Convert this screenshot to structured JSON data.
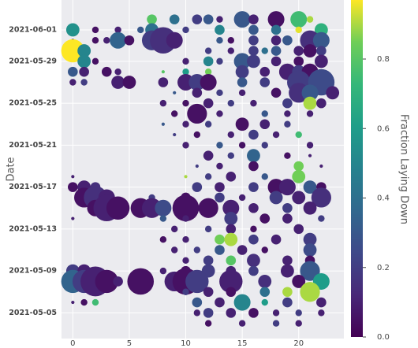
{
  "chart_data": {
    "type": "bubble",
    "y_label": "Date",
    "colorbar_label": "Fraction Laying Down",
    "xlim": [
      -1,
      24
    ],
    "xticks": [
      0,
      5,
      10,
      15,
      20
    ],
    "ylim": [
      "2021-05-03",
      "2021-06-04"
    ],
    "yticks": [
      "2021-06-01",
      "2021-05-29",
      "2021-05-25",
      "2021-05-21",
      "2021-05-17",
      "2021-05-13",
      "2021-05-09",
      "2021-05-05"
    ],
    "clim": [
      0,
      0.97
    ],
    "cticks": [
      {
        "value": 0,
        "label": "0.0"
      },
      0.2,
      0.4,
      0.6,
      0.8
    ],
    "colormap": "viridis",
    "points": [
      [
        7,
        "2021-06-02",
        3,
        0.8
      ],
      [
        9,
        "2021-06-02",
        3,
        0.4
      ],
      [
        11,
        "2021-06-02",
        3,
        0.2
      ],
      [
        12,
        "2021-06-02",
        3,
        0.3
      ],
      [
        13,
        "2021-06-02",
        2,
        0.1
      ],
      [
        15,
        "2021-06-02",
        5,
        0.3
      ],
      [
        16,
        "2021-06-02",
        3,
        0.1
      ],
      [
        18,
        "2021-06-02",
        5,
        0.05
      ],
      [
        20,
        "2021-06-02",
        5,
        0.75
      ],
      [
        21,
        "2021-06-02",
        2,
        0.9
      ],
      [
        0,
        "2021-06-01",
        4,
        0.55
      ],
      [
        2,
        "2021-06-01",
        2,
        0.05
      ],
      [
        4,
        "2021-06-01",
        2,
        0.1
      ],
      [
        6,
        "2021-06-01",
        2,
        0.3
      ],
      [
        7,
        "2021-06-01",
        4,
        0.4
      ],
      [
        10,
        "2021-06-01",
        2,
        0.2
      ],
      [
        13,
        "2021-06-01",
        3,
        0.5
      ],
      [
        16,
        "2021-06-01",
        3,
        0.3
      ],
      [
        18,
        "2021-06-01",
        3,
        0.4
      ],
      [
        20,
        "2021-06-01",
        2,
        0.95
      ],
      [
        22,
        "2021-06-01",
        4,
        0.7
      ],
      [
        0,
        "2021-05-31",
        1,
        0.2
      ],
      [
        2,
        "2021-05-31",
        2,
        0.05
      ],
      [
        3,
        "2021-05-31",
        2,
        0.1
      ],
      [
        4,
        "2021-05-31",
        5,
        0.35
      ],
      [
        5,
        "2021-05-31",
        3,
        0.05
      ],
      [
        7,
        "2021-05-31",
        6,
        0.2
      ],
      [
        8,
        "2021-05-31",
        8,
        0.15
      ],
      [
        9,
        "2021-05-31",
        5,
        0.1
      ],
      [
        13,
        "2021-05-31",
        2,
        0.3
      ],
      [
        14,
        "2021-05-31",
        2,
        0.05
      ],
      [
        16,
        "2021-05-31",
        3,
        0.2
      ],
      [
        18,
        "2021-05-31",
        3,
        0.1
      ],
      [
        19,
        "2021-05-31",
        3,
        0.3
      ],
      [
        21,
        "2021-05-31",
        6,
        0.15
      ],
      [
        22,
        "2021-05-31",
        5,
        0.3
      ],
      [
        0,
        "2021-05-30",
        7,
        0.97
      ],
      [
        1,
        "2021-05-30",
        4,
        0.5
      ],
      [
        12,
        "2021-05-30",
        2,
        0.2
      ],
      [
        14,
        "2021-05-30",
        2,
        0.1
      ],
      [
        16,
        "2021-05-30",
        3,
        0.2
      ],
      [
        17,
        "2021-05-30",
        2,
        0.4
      ],
      [
        18,
        "2021-05-30",
        3,
        0.3
      ],
      [
        20,
        "2021-05-30",
        3,
        0.1
      ],
      [
        21,
        "2021-05-30",
        4,
        0.05
      ],
      [
        22,
        "2021-05-30",
        3,
        0.2
      ],
      [
        1,
        "2021-05-29",
        4,
        0.5
      ],
      [
        2,
        "2021-05-29",
        2,
        0.05
      ],
      [
        10,
        "2021-05-29",
        2,
        0.1
      ],
      [
        12,
        "2021-05-29",
        3,
        0.5
      ],
      [
        13,
        "2021-05-29",
        2,
        0.2
      ],
      [
        15,
        "2021-05-29",
        5,
        0.3
      ],
      [
        16,
        "2021-05-29",
        4,
        0.2
      ],
      [
        18,
        "2021-05-29",
        3,
        0.1
      ],
      [
        20,
        "2021-05-29",
        3,
        0.05
      ],
      [
        22,
        "2021-05-29",
        4,
        0.1
      ],
      [
        0,
        "2021-05-28",
        3,
        0.3
      ],
      [
        1,
        "2021-05-28",
        3,
        0.1
      ],
      [
        3,
        "2021-05-28",
        3,
        0.05
      ],
      [
        4,
        "2021-05-28",
        2,
        0.1
      ],
      [
        8,
        "2021-05-28",
        1,
        0.8
      ],
      [
        10,
        "2021-05-28",
        2,
        0.6
      ],
      [
        12,
        "2021-05-28",
        2,
        0.85
      ],
      [
        15,
        "2021-05-28",
        4,
        0.2
      ],
      [
        17,
        "2021-05-28",
        3,
        0.1
      ],
      [
        19,
        "2021-05-28",
        5,
        0.1
      ],
      [
        20,
        "2021-05-28",
        4,
        0.2
      ],
      [
        21,
        "2021-05-28",
        5,
        0.05
      ],
      [
        0,
        "2021-05-27",
        2,
        0.1
      ],
      [
        1,
        "2021-05-27",
        2,
        0.2
      ],
      [
        4,
        "2021-05-27",
        4,
        0.1
      ],
      [
        5,
        "2021-05-27",
        4,
        0.05
      ],
      [
        8,
        "2021-05-27",
        3,
        0.1
      ],
      [
        10,
        "2021-05-27",
        5,
        0.1
      ],
      [
        11,
        "2021-05-27",
        5,
        0.2
      ],
      [
        12,
        "2021-05-27",
        5,
        0.05
      ],
      [
        15,
        "2021-05-27",
        3,
        0.3
      ],
      [
        17,
        "2021-05-27",
        3,
        0.2
      ],
      [
        20,
        "2021-05-27",
        7,
        0.2
      ],
      [
        22,
        "2021-05-27",
        8,
        0.25
      ],
      [
        9,
        "2021-05-26",
        1,
        0.3
      ],
      [
        11,
        "2021-05-26",
        3,
        0.1
      ],
      [
        13,
        "2021-05-26",
        2,
        0.2
      ],
      [
        15,
        "2021-05-26",
        2,
        0.1
      ],
      [
        18,
        "2021-05-26",
        3,
        0.05
      ],
      [
        20,
        "2021-05-26",
        6,
        0.15
      ],
      [
        21,
        "2021-05-26",
        5,
        0.3
      ],
      [
        23,
        "2021-05-26",
        4,
        0.1
      ],
      [
        8,
        "2021-05-25",
        2,
        0.1
      ],
      [
        10,
        "2021-05-25",
        2,
        0.05
      ],
      [
        12,
        "2021-05-25",
        3,
        0.1
      ],
      [
        14,
        "2021-05-25",
        2,
        0.2
      ],
      [
        16,
        "2021-05-25",
        2,
        0.1
      ],
      [
        19,
        "2021-05-25",
        3,
        0.2
      ],
      [
        21,
        "2021-05-25",
        4,
        0.9
      ],
      [
        22,
        "2021-05-25",
        3,
        0.1
      ],
      [
        9,
        "2021-05-24",
        2,
        0.05
      ],
      [
        11,
        "2021-05-24",
        6,
        0.05
      ],
      [
        13,
        "2021-05-24",
        2,
        0.1
      ],
      [
        17,
        "2021-05-24",
        2,
        0.3
      ],
      [
        19,
        "2021-05-24",
        2,
        0.1
      ],
      [
        21,
        "2021-05-24",
        2,
        0.1
      ],
      [
        8,
        "2021-05-23",
        1,
        0.3
      ],
      [
        10,
        "2021-05-23",
        2,
        0.1
      ],
      [
        12,
        "2021-05-23",
        2,
        0.2
      ],
      [
        15,
        "2021-05-23",
        4,
        0.05
      ],
      [
        17,
        "2021-05-23",
        3,
        0.1
      ],
      [
        19,
        "2021-05-23",
        2,
        0.2
      ],
      [
        9,
        "2021-05-22",
        1,
        0.2
      ],
      [
        11,
        "2021-05-22",
        2,
        0.05
      ],
      [
        14,
        "2021-05-22",
        2,
        0.1
      ],
      [
        16,
        "2021-05-22",
        3,
        0.2
      ],
      [
        18,
        "2021-05-22",
        2,
        0.1
      ],
      [
        20,
        "2021-05-22",
        2,
        0.75
      ],
      [
        10,
        "2021-05-21",
        2,
        0.1
      ],
      [
        13,
        "2021-05-21",
        2,
        0.3
      ],
      [
        15,
        "2021-05-21",
        2,
        0.05
      ],
      [
        17,
        "2021-05-21",
        2,
        0.2
      ],
      [
        21,
        "2021-05-21",
        2,
        0.1
      ],
      [
        12,
        "2021-05-20",
        3,
        0.1
      ],
      [
        14,
        "2021-05-20",
        2,
        0.2
      ],
      [
        16,
        "2021-05-20",
        4,
        0.35
      ],
      [
        19,
        "2021-05-20",
        2,
        0.05
      ],
      [
        21,
        "2021-05-20",
        1,
        0.1
      ],
      [
        11,
        "2021-05-19",
        1,
        0.2
      ],
      [
        13,
        "2021-05-19",
        2,
        0.1
      ],
      [
        16,
        "2021-05-19",
        3,
        0.05
      ],
      [
        20,
        "2021-05-19",
        3,
        0.85
      ],
      [
        22,
        "2021-05-19",
        1,
        0.1
      ],
      [
        0,
        "2021-05-18",
        1,
        0.1
      ],
      [
        10,
        "2021-05-18",
        1,
        0.9
      ],
      [
        12,
        "2021-05-18",
        2,
        0.2
      ],
      [
        14,
        "2021-05-18",
        3,
        0.1
      ],
      [
        17,
        "2021-05-18",
        2,
        0.3
      ],
      [
        20,
        "2021-05-18",
        4,
        0.85
      ],
      [
        0,
        "2021-05-17",
        3,
        0.05
      ],
      [
        1,
        "2021-05-17",
        4,
        0.1
      ],
      [
        2,
        "2021-05-17",
        3,
        0.15
      ],
      [
        11,
        "2021-05-17",
        3,
        0.2
      ],
      [
        13,
        "2021-05-17",
        3,
        0.1
      ],
      [
        16,
        "2021-05-17",
        3,
        0.2
      ],
      [
        18,
        "2021-05-17",
        5,
        0.05
      ],
      [
        19,
        "2021-05-17",
        5,
        0.1
      ],
      [
        21,
        "2021-05-17",
        4,
        0.3
      ],
      [
        22,
        "2021-05-17",
        3,
        0.05
      ],
      [
        1,
        "2021-05-16",
        6,
        0.05
      ],
      [
        2,
        "2021-05-16",
        7,
        0.15
      ],
      [
        3,
        "2021-05-16",
        5,
        0.1
      ],
      [
        7,
        "2021-05-16",
        2,
        0.2
      ],
      [
        10,
        "2021-05-16",
        3,
        0.05
      ],
      [
        13,
        "2021-05-16",
        3,
        0.2
      ],
      [
        15,
        "2021-05-16",
        2,
        0.1
      ],
      [
        18,
        "2021-05-16",
        4,
        0.2
      ],
      [
        20,
        "2021-05-16",
        4,
        0.1
      ],
      [
        22,
        "2021-05-16",
        6,
        0.15
      ],
      [
        2,
        "2021-05-15",
        5,
        0.05
      ],
      [
        3,
        "2021-05-15",
        8,
        0.1
      ],
      [
        4,
        "2021-05-15",
        7,
        0.05
      ],
      [
        6,
        "2021-05-15",
        6,
        0.05
      ],
      [
        7,
        "2021-05-15",
        6,
        0.1
      ],
      [
        8,
        "2021-05-15",
        5,
        0.25
      ],
      [
        10,
        "2021-05-15",
        8,
        0.05
      ],
      [
        12,
        "2021-05-15",
        6,
        0.05
      ],
      [
        14,
        "2021-05-15",
        5,
        0.1
      ],
      [
        16,
        "2021-05-15",
        3,
        0.1
      ],
      [
        19,
        "2021-05-15",
        3,
        0.2
      ],
      [
        21,
        "2021-05-15",
        4,
        0.1
      ],
      [
        0,
        "2021-05-14",
        1,
        0.1
      ],
      [
        8,
        "2021-05-14",
        2,
        0.3
      ],
      [
        10,
        "2021-05-14",
        2,
        0.1
      ],
      [
        14,
        "2021-05-14",
        4,
        0.2
      ],
      [
        17,
        "2021-05-14",
        3,
        0.05
      ],
      [
        19,
        "2021-05-14",
        3,
        0.1
      ],
      [
        22,
        "2021-05-14",
        2,
        0.2
      ],
      [
        9,
        "2021-05-13",
        2,
        0.1
      ],
      [
        12,
        "2021-05-13",
        2,
        0.2
      ],
      [
        14,
        "2021-05-13",
        3,
        0.1
      ],
      [
        16,
        "2021-05-13",
        2,
        0.05
      ],
      [
        20,
        "2021-05-13",
        3,
        0.1
      ],
      [
        8,
        "2021-05-12",
        2,
        0.05
      ],
      [
        10,
        "2021-05-12",
        2,
        0.1
      ],
      [
        13,
        "2021-05-12",
        3,
        0.85
      ],
      [
        14,
        "2021-05-12",
        4,
        0.9
      ],
      [
        16,
        "2021-05-12",
        3,
        0.2
      ],
      [
        18,
        "2021-05-12",
        3,
        0.1
      ],
      [
        21,
        "2021-05-12",
        4,
        0.2
      ],
      [
        9,
        "2021-05-11",
        2,
        0.1
      ],
      [
        11,
        "2021-05-11",
        2,
        0.2
      ],
      [
        13,
        "2021-05-11",
        3,
        0.3
      ],
      [
        15,
        "2021-05-11",
        3,
        0.1
      ],
      [
        17,
        "2021-05-11",
        2,
        0.05
      ],
      [
        21,
        "2021-05-11",
        4,
        0.25
      ],
      [
        10,
        "2021-05-10",
        2,
        0.1
      ],
      [
        12,
        "2021-05-10",
        3,
        0.2
      ],
      [
        14,
        "2021-05-10",
        3,
        0.8
      ],
      [
        16,
        "2021-05-10",
        4,
        0.15
      ],
      [
        19,
        "2021-05-10",
        3,
        0.1
      ],
      [
        21,
        "2021-05-10",
        3,
        0.05
      ],
      [
        0,
        "2021-05-09",
        4,
        0.2
      ],
      [
        1,
        "2021-05-09",
        4,
        0.1
      ],
      [
        8,
        "2021-05-09",
        2,
        0.1
      ],
      [
        10,
        "2021-05-09",
        3,
        0.05
      ],
      [
        12,
        "2021-05-09",
        4,
        0.2
      ],
      [
        14,
        "2021-05-09",
        3,
        0.1
      ],
      [
        16,
        "2021-05-09",
        3,
        0.2
      ],
      [
        19,
        "2021-05-09",
        4,
        0.1
      ],
      [
        21,
        "2021-05-09",
        6,
        0.3
      ],
      [
        0,
        "2021-05-08",
        7,
        0.35
      ],
      [
        1,
        "2021-05-08",
        7,
        0.2
      ],
      [
        2,
        "2021-05-08",
        9,
        0.1
      ],
      [
        3,
        "2021-05-08",
        7,
        0.05
      ],
      [
        4,
        "2021-05-08",
        3,
        0.1
      ],
      [
        6,
        "2021-05-08",
        8,
        0.05
      ],
      [
        9,
        "2021-05-08",
        6,
        0.1
      ],
      [
        10,
        "2021-05-08",
        8,
        0.05
      ],
      [
        11,
        "2021-05-08",
        7,
        0.2
      ],
      [
        14,
        "2021-05-08",
        7,
        0.1
      ],
      [
        17,
        "2021-05-08",
        4,
        0.15
      ],
      [
        20,
        "2021-05-08",
        4,
        0.05
      ],
      [
        22,
        "2021-05-08",
        5,
        0.6
      ],
      [
        10,
        "2021-05-07",
        2,
        0.2
      ],
      [
        12,
        "2021-05-07",
        3,
        0.1
      ],
      [
        14,
        "2021-05-07",
        3,
        0.05
      ],
      [
        17,
        "2021-05-07",
        3,
        0.4
      ],
      [
        19,
        "2021-05-07",
        3,
        0.9
      ],
      [
        21,
        "2021-05-07",
        6,
        0.9
      ],
      [
        0,
        "2021-05-06",
        1,
        0.1
      ],
      [
        1,
        "2021-05-06",
        2,
        0.05
      ],
      [
        2,
        "2021-05-06",
        2,
        0.75
      ],
      [
        11,
        "2021-05-06",
        3,
        0.3
      ],
      [
        13,
        "2021-05-06",
        3,
        0.1
      ],
      [
        15,
        "2021-05-06",
        5,
        0.5
      ],
      [
        17,
        "2021-05-06",
        2,
        0.6
      ],
      [
        19,
        "2021-05-06",
        3,
        0.2
      ],
      [
        22,
        "2021-05-06",
        3,
        0.1
      ],
      [
        11,
        "2021-05-05",
        2,
        0.1
      ],
      [
        12,
        "2021-05-05",
        3,
        0.2
      ],
      [
        14,
        "2021-05-05",
        3,
        0.1
      ],
      [
        16,
        "2021-05-05",
        3,
        0.05
      ],
      [
        18,
        "2021-05-05",
        2,
        0.1
      ],
      [
        20,
        "2021-05-05",
        2,
        0.2
      ],
      [
        22,
        "2021-05-05",
        2,
        0.1
      ],
      [
        12,
        "2021-05-04",
        2,
        0.05
      ],
      [
        15,
        "2021-05-04",
        2,
        0.1
      ],
      [
        18,
        "2021-05-04",
        2,
        0.2
      ],
      [
        20,
        "2021-05-04",
        2,
        0.1
      ]
    ]
  }
}
